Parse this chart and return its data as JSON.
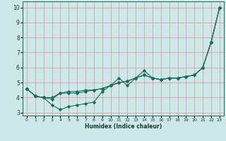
{
  "xlabel": "Humidex (Indice chaleur)",
  "background_color": "#cce8e8",
  "grid_color": "#dda0a0",
  "line_color": "#1a6b5a",
  "xlim": [
    -0.5,
    23.5
  ],
  "ylim": [
    2.8,
    10.4
  ],
  "xticks": [
    0,
    1,
    2,
    3,
    4,
    5,
    6,
    7,
    8,
    9,
    10,
    11,
    12,
    13,
    14,
    15,
    16,
    17,
    18,
    19,
    20,
    21,
    22,
    23
  ],
  "yticks": [
    3,
    4,
    5,
    6,
    7,
    8,
    9,
    10
  ],
  "series1_x": [
    0,
    1,
    2,
    3,
    4,
    5,
    6,
    7,
    8,
    9,
    10,
    11,
    12,
    13,
    14,
    15,
    16,
    17,
    18,
    19,
    20,
    21,
    22,
    23
  ],
  "series1_y": [
    4.6,
    4.1,
    4.0,
    3.5,
    3.2,
    3.4,
    3.5,
    3.6,
    3.7,
    4.4,
    4.8,
    5.3,
    4.8,
    5.3,
    5.8,
    5.3,
    5.2,
    5.3,
    5.3,
    5.4,
    5.5,
    6.0,
    7.7,
    10.0
  ],
  "series2_x": [
    0,
    1,
    2,
    3,
    4,
    5,
    6,
    7,
    8,
    9,
    10,
    11,
    12,
    13,
    14,
    15,
    16,
    17,
    18,
    19,
    20,
    21,
    22,
    23
  ],
  "series2_y": [
    4.6,
    4.1,
    4.0,
    3.9,
    4.3,
    4.3,
    4.3,
    4.4,
    4.5,
    4.6,
    4.8,
    5.0,
    5.1,
    5.3,
    5.5,
    5.3,
    5.2,
    5.3,
    5.3,
    5.4,
    5.5,
    6.0,
    7.7,
    10.0
  ],
  "series3_x": [
    0,
    1,
    2,
    3,
    4,
    5,
    6,
    7,
    8,
    9,
    10,
    11,
    12,
    13,
    14,
    15,
    16,
    17,
    18,
    19,
    20,
    21,
    22,
    23
  ],
  "series3_y": [
    4.6,
    4.1,
    4.0,
    4.0,
    4.3,
    4.4,
    4.4,
    4.5,
    4.5,
    4.6,
    4.8,
    5.0,
    5.1,
    5.3,
    5.5,
    5.3,
    5.2,
    5.3,
    5.3,
    5.4,
    5.5,
    6.0,
    7.7,
    10.0
  ]
}
